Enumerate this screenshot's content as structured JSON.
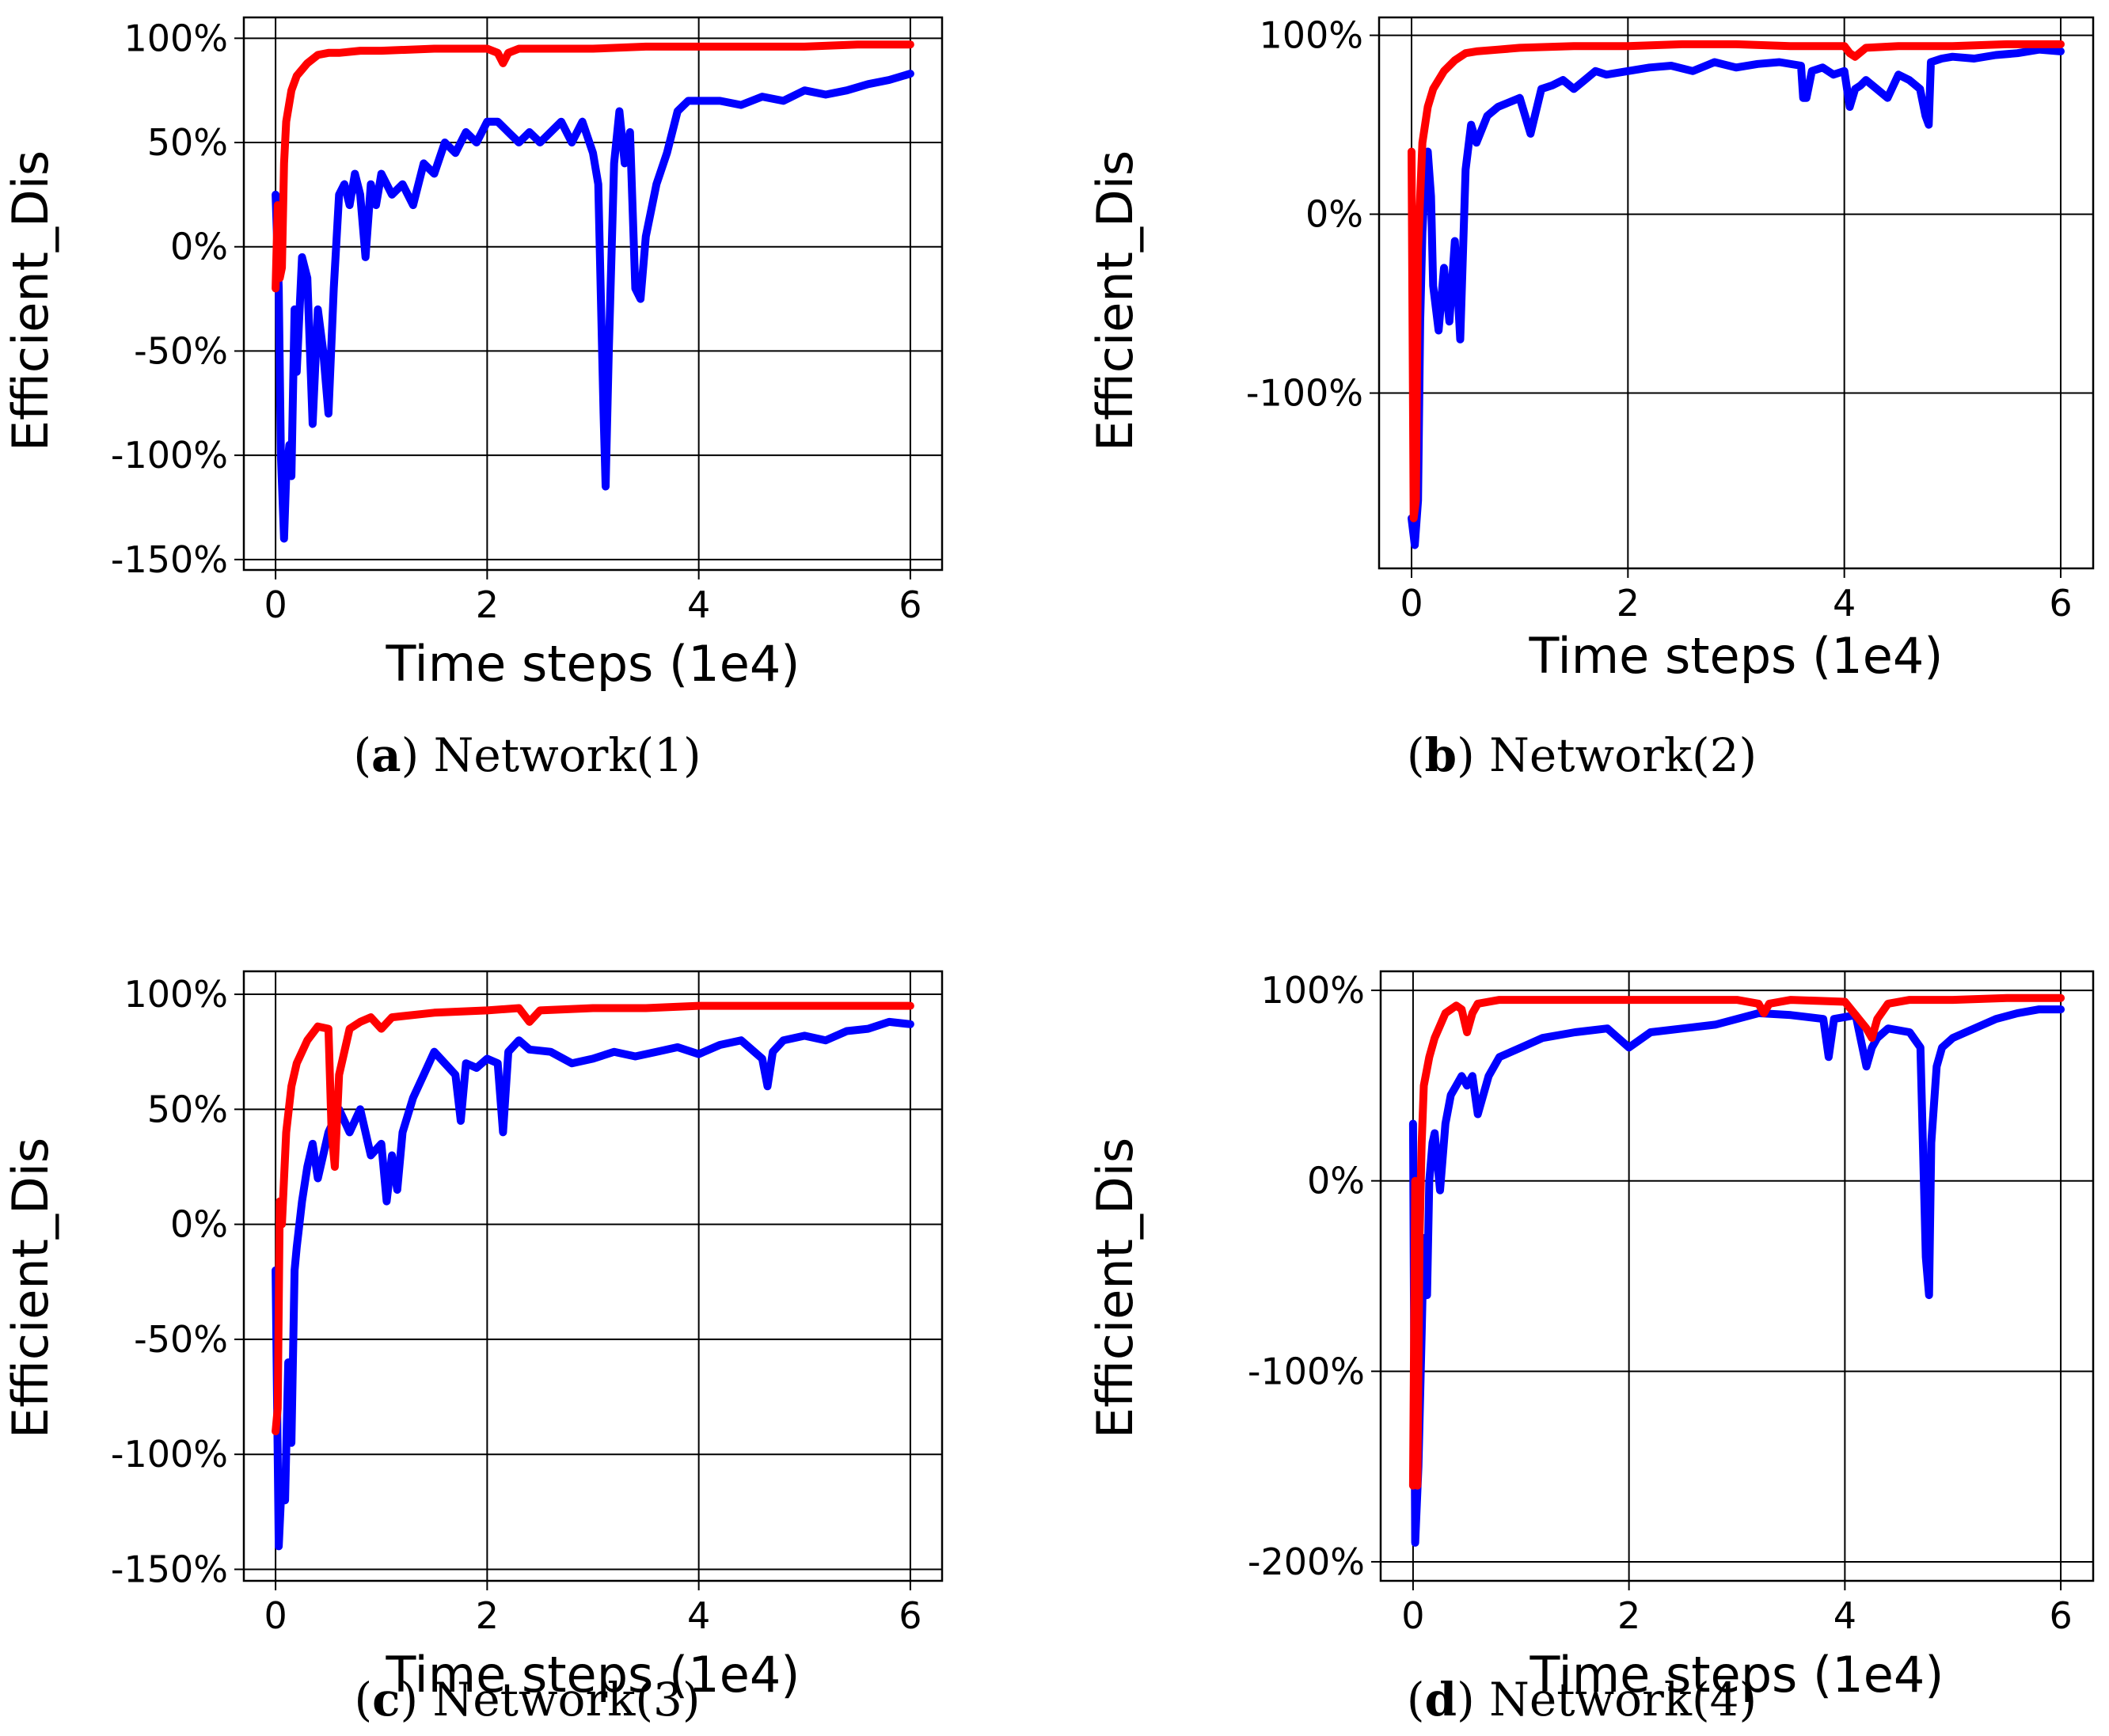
{
  "colors": {
    "series_a": "#0000ff",
    "series_b": "#ff0000",
    "grid": "#000000"
  },
  "chart_data": [
    {
      "type": "line",
      "panel_letter": "a",
      "caption_text": "Network(1)",
      "xlabel": "Time steps (1e4)",
      "ylabel": "Efficient_Dis",
      "xlim": [
        -0.3,
        6.3
      ],
      "ylim": [
        -155,
        110
      ],
      "xticks": [
        0,
        2,
        4,
        6
      ],
      "xtick_labels": [
        "0",
        "2",
        "4",
        "6"
      ],
      "yticks": [
        100,
        50,
        0,
        -50,
        -100,
        -150
      ],
      "ytick_labels": [
        "100%",
        "50%",
        "0%",
        "-50%",
        "-100%",
        "-150%"
      ],
      "series": [
        {
          "name": "blue",
          "x": [
            0,
            0.03,
            0.05,
            0.08,
            0.1,
            0.13,
            0.15,
            0.18,
            0.2,
            0.25,
            0.3,
            0.35,
            0.4,
            0.45,
            0.5,
            0.55,
            0.6,
            0.65,
            0.7,
            0.75,
            0.8,
            0.85,
            0.9,
            0.95,
            1.0,
            1.1,
            1.2,
            1.3,
            1.4,
            1.5,
            1.6,
            1.7,
            1.8,
            1.9,
            2.0,
            2.1,
            2.2,
            2.3,
            2.4,
            2.5,
            2.6,
            2.7,
            2.8,
            2.9,
            3.0,
            3.05,
            3.1,
            3.12,
            3.15,
            3.2,
            3.25,
            3.3,
            3.35,
            3.4,
            3.45,
            3.5,
            3.6,
            3.7,
            3.8,
            3.9,
            4.0,
            4.2,
            4.4,
            4.6,
            4.8,
            5.0,
            5.2,
            5.4,
            5.6,
            5.8,
            6.0
          ],
          "y": [
            25,
            -20,
            -100,
            -140,
            -110,
            -95,
            -110,
            -30,
            -60,
            -5,
            -15,
            -85,
            -30,
            -50,
            -80,
            -20,
            25,
            30,
            20,
            35,
            25,
            -5,
            30,
            20,
            35,
            25,
            30,
            20,
            40,
            35,
            50,
            45,
            55,
            50,
            60,
            60,
            55,
            50,
            55,
            50,
            55,
            60,
            50,
            60,
            45,
            30,
            -80,
            -115,
            -50,
            40,
            65,
            40,
            55,
            -20,
            -25,
            5,
            30,
            45,
            65,
            70,
            70,
            70,
            68,
            72,
            70,
            75,
            73,
            75,
            78,
            80,
            83
          ]
        },
        {
          "name": "red",
          "x": [
            0,
            0.02,
            0.04,
            0.06,
            0.08,
            0.1,
            0.15,
            0.2,
            0.3,
            0.4,
            0.5,
            0.6,
            0.8,
            1.0,
            1.5,
            2.0,
            2.1,
            2.15,
            2.2,
            2.3,
            2.6,
            3.0,
            3.5,
            4.0,
            4.5,
            5.0,
            5.5,
            6.0
          ],
          "y": [
            -20,
            20,
            -15,
            -10,
            40,
            60,
            75,
            82,
            88,
            92,
            93,
            93,
            94,
            94,
            95,
            95,
            93,
            88,
            93,
            95,
            95,
            95,
            96,
            96,
            96,
            96,
            97,
            97
          ]
        }
      ]
    },
    {
      "type": "line",
      "panel_letter": "b",
      "caption_text": "Network(2)",
      "xlabel": "Time steps (1e4)",
      "ylabel": "Efficient_Dis",
      "xlim": [
        -0.3,
        6.3
      ],
      "ylim": [
        -198,
        110
      ],
      "xticks": [
        0,
        2,
        4,
        6
      ],
      "xtick_labels": [
        "0",
        "2",
        "4",
        "6"
      ],
      "yticks": [
        100,
        0,
        -100
      ],
      "ytick_labels": [
        "100%",
        "0%",
        "-100%"
      ],
      "series": [
        {
          "name": "blue",
          "x": [
            0,
            0.03,
            0.06,
            0.08,
            0.1,
            0.13,
            0.15,
            0.18,
            0.2,
            0.25,
            0.3,
            0.35,
            0.4,
            0.45,
            0.5,
            0.55,
            0.6,
            0.7,
            0.8,
            1.0,
            1.1,
            1.2,
            1.3,
            1.4,
            1.5,
            1.6,
            1.7,
            1.8,
            2.0,
            2.2,
            2.4,
            2.6,
            2.8,
            3.0,
            3.2,
            3.4,
            3.6,
            3.62,
            3.65,
            3.7,
            3.8,
            3.9,
            4.0,
            4.05,
            4.1,
            4.15,
            4.2,
            4.3,
            4.4,
            4.5,
            4.6,
            4.7,
            4.75,
            4.78,
            4.8,
            4.9,
            5.0,
            5.2,
            5.4,
            5.6,
            5.8,
            6.0
          ],
          "y": [
            -170,
            -185,
            -160,
            -60,
            -10,
            25,
            35,
            10,
            -40,
            -65,
            -30,
            -60,
            -15,
            -70,
            25,
            50,
            40,
            55,
            60,
            65,
            45,
            70,
            72,
            75,
            70,
            75,
            80,
            78,
            80,
            82,
            83,
            80,
            85,
            82,
            84,
            85,
            83,
            65,
            65,
            80,
            82,
            78,
            80,
            60,
            70,
            72,
            75,
            70,
            65,
            78,
            75,
            70,
            55,
            50,
            85,
            87,
            88,
            87,
            89,
            90,
            92,
            91
          ]
        },
        {
          "name": "red",
          "x": [
            0,
            0.02,
            0.04,
            0.06,
            0.08,
            0.1,
            0.15,
            0.2,
            0.3,
            0.4,
            0.5,
            0.6,
            0.8,
            1.0,
            1.5,
            2.0,
            2.5,
            3.0,
            3.5,
            4.0,
            4.05,
            4.1,
            4.2,
            4.5,
            5.0,
            5.5,
            6.0
          ],
          "y": [
            35,
            -170,
            -160,
            -20,
            10,
            40,
            60,
            70,
            80,
            86,
            90,
            91,
            92,
            93,
            94,
            94,
            95,
            95,
            94,
            94,
            90,
            88,
            93,
            94,
            94,
            95,
            95
          ]
        }
      ]
    },
    {
      "type": "line",
      "panel_letter": "c",
      "caption_text": "Network(3)",
      "xlabel": "Time steps (1e4)",
      "ylabel": "Efficient_Dis",
      "xlim": [
        -0.3,
        6.3
      ],
      "ylim": [
        -155,
        110
      ],
      "xticks": [
        0,
        2,
        4,
        6
      ],
      "xtick_labels": [
        "0",
        "2",
        "4",
        "6"
      ],
      "yticks": [
        100,
        50,
        0,
        -50,
        -100,
        -150
      ],
      "ytick_labels": [
        "100%",
        "50%",
        "0%",
        "-50%",
        "-100%",
        "-150%"
      ],
      "series": [
        {
          "name": "blue",
          "x": [
            0,
            0.03,
            0.06,
            0.09,
            0.12,
            0.15,
            0.18,
            0.2,
            0.25,
            0.3,
            0.35,
            0.4,
            0.5,
            0.6,
            0.7,
            0.8,
            0.9,
            1.0,
            1.05,
            1.1,
            1.15,
            1.2,
            1.3,
            1.4,
            1.5,
            1.6,
            1.7,
            1.75,
            1.8,
            1.9,
            2.0,
            2.1,
            2.15,
            2.2,
            2.3,
            2.4,
            2.6,
            2.8,
            3.0,
            3.2,
            3.4,
            3.6,
            3.8,
            4.0,
            4.2,
            4.4,
            4.6,
            4.65,
            4.7,
            4.8,
            5.0,
            5.2,
            5.4,
            5.6,
            5.8,
            6.0
          ],
          "y": [
            -20,
            -140,
            -110,
            -120,
            -60,
            -95,
            -20,
            -10,
            10,
            25,
            35,
            20,
            40,
            50,
            40,
            50,
            30,
            35,
            10,
            30,
            15,
            40,
            55,
            65,
            75,
            70,
            65,
            45,
            70,
            68,
            72,
            70,
            40,
            75,
            80,
            76,
            75,
            70,
            72,
            75,
            73,
            75,
            77,
            74,
            78,
            80,
            72,
            60,
            75,
            80,
            82,
            80,
            84,
            85,
            88,
            87
          ]
        },
        {
          "name": "red",
          "x": [
            0,
            0.02,
            0.04,
            0.06,
            0.08,
            0.1,
            0.15,
            0.2,
            0.3,
            0.4,
            0.5,
            0.53,
            0.56,
            0.6,
            0.7,
            0.8,
            0.9,
            1.0,
            1.1,
            1.5,
            2.0,
            2.3,
            2.4,
            2.5,
            3.0,
            3.5,
            4.0,
            4.5,
            5.0,
            5.5,
            6.0
          ],
          "y": [
            -90,
            -80,
            10,
            0,
            20,
            40,
            60,
            70,
            80,
            86,
            85,
            40,
            25,
            65,
            85,
            88,
            90,
            85,
            90,
            92,
            93,
            94,
            88,
            93,
            94,
            94,
            95,
            95,
            95,
            95,
            95
          ]
        }
      ]
    },
    {
      "type": "line",
      "panel_letter": "d",
      "caption_text": "Network(4)",
      "xlabel": "Time steps (1e4)",
      "ylabel": "Efficient_Dis",
      "xlim": [
        -0.3,
        6.3
      ],
      "ylim": [
        -210,
        110
      ],
      "xticks": [
        0,
        2,
        4,
        6
      ],
      "xtick_labels": [
        "0",
        "2",
        "4",
        "6"
      ],
      "yticks": [
        100,
        0,
        -100,
        -200
      ],
      "ytick_labels": [
        "100%",
        "0%",
        "-100%",
        "-200%"
      ],
      "series": [
        {
          "name": "blue",
          "x": [
            0,
            0.02,
            0.05,
            0.08,
            0.1,
            0.13,
            0.15,
            0.18,
            0.2,
            0.25,
            0.3,
            0.35,
            0.4,
            0.45,
            0.5,
            0.55,
            0.6,
            0.7,
            0.8,
            1.0,
            1.2,
            1.5,
            1.8,
            2.0,
            2.2,
            2.5,
            2.8,
            3.0,
            3.2,
            3.5,
            3.8,
            3.85,
            3.9,
            4.0,
            4.1,
            4.2,
            4.25,
            4.3,
            4.4,
            4.6,
            4.7,
            4.75,
            4.78,
            4.8,
            4.85,
            4.9,
            5.0,
            5.2,
            5.4,
            5.6,
            5.8,
            6.0
          ],
          "y": [
            30,
            -190,
            -150,
            -80,
            -30,
            -60,
            0,
            20,
            25,
            -5,
            30,
            45,
            50,
            55,
            50,
            55,
            35,
            55,
            65,
            70,
            75,
            78,
            80,
            70,
            78,
            80,
            82,
            85,
            88,
            87,
            85,
            65,
            85,
            86,
            87,
            60,
            70,
            75,
            80,
            78,
            70,
            -40,
            -60,
            20,
            60,
            70,
            75,
            80,
            85,
            88,
            90,
            90
          ]
        },
        {
          "name": "red",
          "x": [
            0,
            0.02,
            0.04,
            0.06,
            0.08,
            0.1,
            0.15,
            0.2,
            0.3,
            0.4,
            0.45,
            0.5,
            0.55,
            0.6,
            0.8,
            1.0,
            1.5,
            2.0,
            2.5,
            3.0,
            3.2,
            3.25,
            3.3,
            3.5,
            4.0,
            4.2,
            4.25,
            4.3,
            4.4,
            4.6,
            5.0,
            5.5,
            6.0
          ],
          "y": [
            -160,
            0,
            -160,
            -30,
            20,
            50,
            65,
            75,
            88,
            92,
            90,
            78,
            88,
            93,
            95,
            95,
            95,
            95,
            95,
            95,
            93,
            88,
            93,
            95,
            94,
            80,
            75,
            85,
            93,
            95,
            95,
            96,
            96
          ]
        }
      ]
    }
  ]
}
